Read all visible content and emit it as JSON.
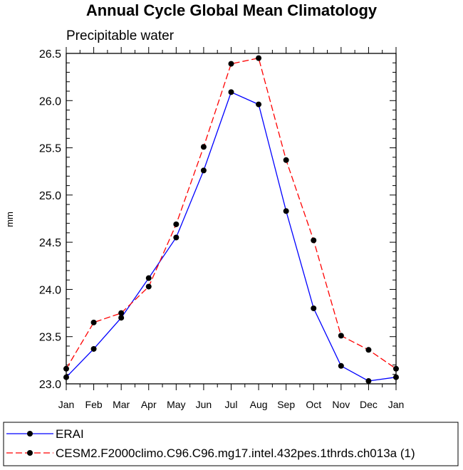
{
  "chart_data": {
    "type": "line",
    "title": "Annual Cycle Global Mean Climatology",
    "subtitle": "Precipitable water",
    "xlabel": "",
    "ylabel": "mm",
    "categories": [
      "Jan",
      "Feb",
      "Mar",
      "Apr",
      "May",
      "Jun",
      "Jul",
      "Aug",
      "Sep",
      "Oct",
      "Nov",
      "Dec",
      "Jan"
    ],
    "ylim": [
      23.0,
      26.5
    ],
    "yticks": [
      "23.0",
      "23.5",
      "24.0",
      "24.5",
      "25.0",
      "25.5",
      "26.0",
      "26.5"
    ],
    "grid": false,
    "legend": "bottom",
    "series": [
      {
        "name": "ERAI",
        "color": "#0000ff",
        "dash": "solid",
        "marker": "filled-circle",
        "values": [
          23.07,
          23.37,
          23.7,
          24.12,
          24.55,
          25.26,
          26.09,
          25.96,
          24.83,
          23.8,
          23.19,
          23.03,
          23.07
        ]
      },
      {
        "name": "CESM2.F2000climo.C96.C96.mg17.intel.432pes.1thrds.ch013a (1)",
        "color": "#ff0000",
        "dash": "dashed",
        "marker": "filled-circle",
        "values": [
          23.16,
          23.65,
          23.75,
          24.03,
          24.69,
          25.51,
          26.39,
          26.45,
          25.37,
          24.52,
          23.51,
          23.36,
          23.16
        ]
      }
    ]
  }
}
